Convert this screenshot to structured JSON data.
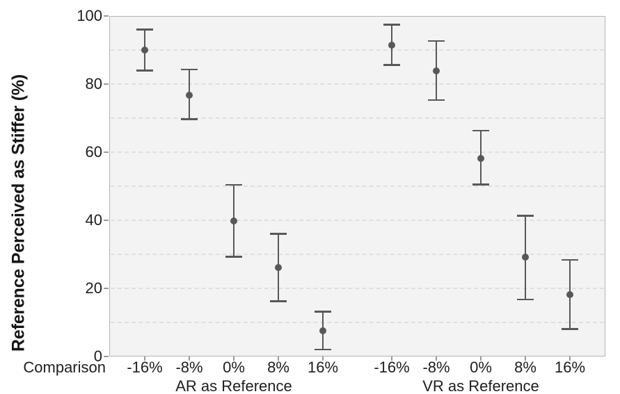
{
  "chart_data": {
    "type": "scatter",
    "subtype": "point-estimates-with-error-bars",
    "title": "",
    "ylabel": "Reference Perceived as Stiffer (%)",
    "xlabel": "Comparison",
    "unit": "%",
    "ylim": [
      0,
      100
    ],
    "y_ticks": [
      0,
      20,
      40,
      60,
      80,
      100
    ],
    "y_gridlines": [
      10,
      20,
      30,
      40,
      50,
      60,
      70,
      80,
      90
    ],
    "grid_style": "dashed",
    "legend": "none",
    "groups": [
      {
        "label": "AR as Reference",
        "categories": [
          "-16%",
          "-8%",
          "0%",
          "8%",
          "16%"
        ],
        "points": [
          {
            "x": "-16%",
            "mean": 90.0,
            "ci_low": 84.0,
            "ci_high": 96.0
          },
          {
            "x": "-8%",
            "mean": 76.7,
            "ci_low": 69.7,
            "ci_high": 84.3
          },
          {
            "x": "0%",
            "mean": 39.8,
            "ci_low": 29.3,
            "ci_high": 50.4
          },
          {
            "x": "8%",
            "mean": 26.2,
            "ci_low": 16.2,
            "ci_high": 36.0
          },
          {
            "x": "16%",
            "mean": 7.6,
            "ci_low": 2.0,
            "ci_high": 13.2
          }
        ]
      },
      {
        "label": "VR as Reference",
        "categories": [
          "-16%",
          "-8%",
          "0%",
          "8%",
          "16%"
        ],
        "points": [
          {
            "x": "-16%",
            "mean": 91.5,
            "ci_low": 85.6,
            "ci_high": 97.5
          },
          {
            "x": "-8%",
            "mean": 83.8,
            "ci_low": 75.3,
            "ci_high": 92.7
          },
          {
            "x": "0%",
            "mean": 58.2,
            "ci_low": 50.5,
            "ci_high": 66.3
          },
          {
            "x": "8%",
            "mean": 29.2,
            "ci_low": 16.7,
            "ci_high": 41.3
          },
          {
            "x": "16%",
            "mean": 18.2,
            "ci_low": 8.1,
            "ci_high": 28.4
          }
        ]
      }
    ],
    "colors": {
      "point": "#58585a",
      "error_bar": "#58585a",
      "panel_background": "#f3f3f4",
      "panel_border": "#b3b3b3",
      "gridline": "#dfdfdf",
      "tick": "#9a9a9a",
      "text": "#1e1e1e"
    }
  }
}
